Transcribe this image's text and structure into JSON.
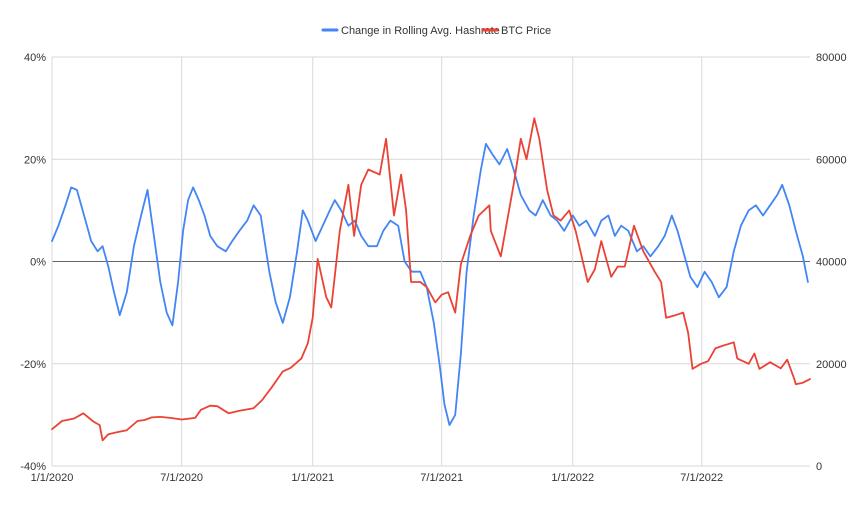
{
  "chart_data": {
    "type": "line",
    "title": "",
    "xlabel": "",
    "ylabel": "",
    "legend": {
      "placement": "top-center"
    },
    "grid": true,
    "x_axis": {
      "range": [
        "2020-01-01",
        "2022-11-30"
      ],
      "ticks": [
        {
          "date": "2020-01-01",
          "label": "1/1/2020"
        },
        {
          "date": "2020-07-01",
          "label": "7/1/2020"
        },
        {
          "date": "2021-01-01",
          "label": "1/1/2021"
        },
        {
          "date": "2021-07-01",
          "label": "7/1/2021"
        },
        {
          "date": "2022-01-01",
          "label": "1/1/2022"
        },
        {
          "date": "2022-07-01",
          "label": "7/1/2022"
        }
      ]
    },
    "y_left": {
      "range": [
        -40,
        40
      ],
      "ticks": [
        {
          "value": 40,
          "label": "40%"
        },
        {
          "value": 20,
          "label": "20%"
        },
        {
          "value": 0,
          "label": "0%"
        },
        {
          "value": -20,
          "label": "-20%"
        },
        {
          "value": -40,
          "label": "-40%"
        }
      ]
    },
    "y_right": {
      "range": [
        0,
        80000
      ],
      "ticks": [
        {
          "value": 80000,
          "label": "80000"
        },
        {
          "value": 60000,
          "label": "60000"
        },
        {
          "value": 40000,
          "label": "40000"
        },
        {
          "value": 20000,
          "label": "20000"
        },
        {
          "value": 0,
          "label": "0"
        }
      ]
    },
    "series": [
      {
        "name": "Change in Rolling Avg. Hashrate",
        "axis": "left",
        "color": "#4285f4",
        "points": [
          [
            "2020-01-01",
            4
          ],
          [
            "2020-01-10",
            7
          ],
          [
            "2020-01-20",
            11
          ],
          [
            "2020-01-28",
            14.5
          ],
          [
            "2020-02-05",
            14
          ],
          [
            "2020-02-15",
            9
          ],
          [
            "2020-02-25",
            4
          ],
          [
            "2020-03-05",
            2
          ],
          [
            "2020-03-12",
            3
          ],
          [
            "2020-03-20",
            -1
          ],
          [
            "2020-03-28",
            -6
          ],
          [
            "2020-04-05",
            -10.5
          ],
          [
            "2020-04-15",
            -6
          ],
          [
            "2020-04-25",
            3
          ],
          [
            "2020-05-05",
            9
          ],
          [
            "2020-05-14",
            14
          ],
          [
            "2020-05-22",
            6
          ],
          [
            "2020-06-01",
            -4
          ],
          [
            "2020-06-10",
            -10
          ],
          [
            "2020-06-18",
            -12.5
          ],
          [
            "2020-06-26",
            -4
          ],
          [
            "2020-07-03",
            6
          ],
          [
            "2020-07-10",
            12
          ],
          [
            "2020-07-17",
            14.5
          ],
          [
            "2020-07-25",
            12
          ],
          [
            "2020-08-02",
            9
          ],
          [
            "2020-08-10",
            5
          ],
          [
            "2020-08-20",
            3
          ],
          [
            "2020-09-01",
            2
          ],
          [
            "2020-09-10",
            4
          ],
          [
            "2020-09-20",
            6
          ],
          [
            "2020-10-01",
            8
          ],
          [
            "2020-10-10",
            11
          ],
          [
            "2020-10-20",
            9
          ],
          [
            "2020-11-01",
            -2
          ],
          [
            "2020-11-10",
            -8
          ],
          [
            "2020-11-20",
            -12
          ],
          [
            "2020-11-30",
            -7
          ],
          [
            "2020-12-10",
            2
          ],
          [
            "2020-12-18",
            10
          ],
          [
            "2020-12-25",
            8
          ],
          [
            "2021-01-05",
            4
          ],
          [
            "2021-01-15",
            7
          ],
          [
            "2021-01-25",
            10
          ],
          [
            "2021-02-01",
            12
          ],
          [
            "2021-02-10",
            10
          ],
          [
            "2021-02-20",
            7
          ],
          [
            "2021-03-01",
            8
          ],
          [
            "2021-03-10",
            5
          ],
          [
            "2021-03-20",
            3
          ],
          [
            "2021-04-01",
            3
          ],
          [
            "2021-04-10",
            6
          ],
          [
            "2021-04-20",
            8
          ],
          [
            "2021-05-01",
            7
          ],
          [
            "2021-05-10",
            0
          ],
          [
            "2021-05-20",
            -2
          ],
          [
            "2021-06-01",
            -2
          ],
          [
            "2021-06-10",
            -5
          ],
          [
            "2021-06-20",
            -12
          ],
          [
            "2021-06-28",
            -20
          ],
          [
            "2021-07-05",
            -28
          ],
          [
            "2021-07-12",
            -32
          ],
          [
            "2021-07-20",
            -30
          ],
          [
            "2021-07-28",
            -18
          ],
          [
            "2021-08-05",
            -2
          ],
          [
            "2021-08-15",
            9
          ],
          [
            "2021-08-25",
            18
          ],
          [
            "2021-09-01",
            23
          ],
          [
            "2021-09-10",
            21
          ],
          [
            "2021-09-20",
            19
          ],
          [
            "2021-10-01",
            22
          ],
          [
            "2021-10-10",
            18
          ],
          [
            "2021-10-20",
            13
          ],
          [
            "2021-11-01",
            10
          ],
          [
            "2021-11-10",
            9
          ],
          [
            "2021-11-20",
            12
          ],
          [
            "2021-12-01",
            9
          ],
          [
            "2021-12-10",
            8
          ],
          [
            "2021-12-20",
            6
          ],
          [
            "2022-01-01",
            9
          ],
          [
            "2022-01-10",
            7
          ],
          [
            "2022-01-20",
            8
          ],
          [
            "2022-02-01",
            5
          ],
          [
            "2022-02-10",
            8
          ],
          [
            "2022-02-20",
            9
          ],
          [
            "2022-03-01",
            5
          ],
          [
            "2022-03-10",
            7
          ],
          [
            "2022-03-20",
            6
          ],
          [
            "2022-04-01",
            2
          ],
          [
            "2022-04-10",
            3
          ],
          [
            "2022-04-20",
            1
          ],
          [
            "2022-05-01",
            3
          ],
          [
            "2022-05-10",
            5
          ],
          [
            "2022-05-20",
            9
          ],
          [
            "2022-05-28",
            6
          ],
          [
            "2022-06-05",
            2
          ],
          [
            "2022-06-15",
            -3
          ],
          [
            "2022-06-25",
            -5
          ],
          [
            "2022-07-05",
            -2
          ],
          [
            "2022-07-15",
            -4
          ],
          [
            "2022-07-25",
            -7
          ],
          [
            "2022-08-05",
            -5
          ],
          [
            "2022-08-15",
            2
          ],
          [
            "2022-08-25",
            7
          ],
          [
            "2022-09-05",
            10
          ],
          [
            "2022-09-15",
            11
          ],
          [
            "2022-09-25",
            9
          ],
          [
            "2022-10-05",
            11
          ],
          [
            "2022-10-15",
            13
          ],
          [
            "2022-10-22",
            15
          ],
          [
            "2022-11-01",
            11
          ],
          [
            "2022-11-10",
            6
          ],
          [
            "2022-11-20",
            1
          ],
          [
            "2022-11-27",
            -4
          ]
        ]
      },
      {
        "name": "BTC Price",
        "axis": "right",
        "color": "#ea4335",
        "points": [
          [
            "2020-01-01",
            7200
          ],
          [
            "2020-01-15",
            8800
          ],
          [
            "2020-02-01",
            9300
          ],
          [
            "2020-02-14",
            10300
          ],
          [
            "2020-02-28",
            8700
          ],
          [
            "2020-03-08",
            8000
          ],
          [
            "2020-03-12",
            5000
          ],
          [
            "2020-03-20",
            6200
          ],
          [
            "2020-04-01",
            6600
          ],
          [
            "2020-04-15",
            7000
          ],
          [
            "2020-04-30",
            8800
          ],
          [
            "2020-05-10",
            9000
          ],
          [
            "2020-05-20",
            9500
          ],
          [
            "2020-06-01",
            9600
          ],
          [
            "2020-06-15",
            9400
          ],
          [
            "2020-07-01",
            9100
          ],
          [
            "2020-07-20",
            9400
          ],
          [
            "2020-07-28",
            11000
          ],
          [
            "2020-08-10",
            11800
          ],
          [
            "2020-08-20",
            11700
          ],
          [
            "2020-09-05",
            10300
          ],
          [
            "2020-09-20",
            10800
          ],
          [
            "2020-10-10",
            11300
          ],
          [
            "2020-10-22",
            12900
          ],
          [
            "2020-11-05",
            15500
          ],
          [
            "2020-11-20",
            18500
          ],
          [
            "2020-12-01",
            19200
          ],
          [
            "2020-12-16",
            21000
          ],
          [
            "2020-12-25",
            24000
          ],
          [
            "2021-01-01",
            29000
          ],
          [
            "2021-01-08",
            40500
          ],
          [
            "2021-01-20",
            33000
          ],
          [
            "2021-01-27",
            31000
          ],
          [
            "2021-02-08",
            46000
          ],
          [
            "2021-02-20",
            55000
          ],
          [
            "2021-02-28",
            45000
          ],
          [
            "2021-03-10",
            55000
          ],
          [
            "2021-03-20",
            58000
          ],
          [
            "2021-04-05",
            57000
          ],
          [
            "2021-04-14",
            64000
          ],
          [
            "2021-04-25",
            49000
          ],
          [
            "2021-05-05",
            57000
          ],
          [
            "2021-05-12",
            50000
          ],
          [
            "2021-05-19",
            36000
          ],
          [
            "2021-06-01",
            36000
          ],
          [
            "2021-06-10",
            35000
          ],
          [
            "2021-06-22",
            32000
          ],
          [
            "2021-07-01",
            33500
          ],
          [
            "2021-07-10",
            34000
          ],
          [
            "2021-07-20",
            30000
          ],
          [
            "2021-07-28",
            39500
          ],
          [
            "2021-08-10",
            45000
          ],
          [
            "2021-08-22",
            49000
          ],
          [
            "2021-09-06",
            51000
          ],
          [
            "2021-09-08",
            46000
          ],
          [
            "2021-09-22",
            41000
          ],
          [
            "2021-10-01",
            48000
          ],
          [
            "2021-10-10",
            55000
          ],
          [
            "2021-10-20",
            64000
          ],
          [
            "2021-10-28",
            60000
          ],
          [
            "2021-11-08",
            68000
          ],
          [
            "2021-11-15",
            64000
          ],
          [
            "2021-11-26",
            54000
          ],
          [
            "2021-12-05",
            49000
          ],
          [
            "2021-12-15",
            48000
          ],
          [
            "2021-12-27",
            50000
          ],
          [
            "2022-01-05",
            46000
          ],
          [
            "2022-01-22",
            36000
          ],
          [
            "2022-02-01",
            38500
          ],
          [
            "2022-02-10",
            44000
          ],
          [
            "2022-02-24",
            37000
          ],
          [
            "2022-03-05",
            39000
          ],
          [
            "2022-03-15",
            39000
          ],
          [
            "2022-03-28",
            47000
          ],
          [
            "2022-04-10",
            42000
          ],
          [
            "2022-04-26",
            38000
          ],
          [
            "2022-05-05",
            36000
          ],
          [
            "2022-05-12",
            29000
          ],
          [
            "2022-05-25",
            29500
          ],
          [
            "2022-06-05",
            30000
          ],
          [
            "2022-06-12",
            26000
          ],
          [
            "2022-06-18",
            19000
          ],
          [
            "2022-06-30",
            20000
          ],
          [
            "2022-07-10",
            20500
          ],
          [
            "2022-07-20",
            23000
          ],
          [
            "2022-07-30",
            23500
          ],
          [
            "2022-08-15",
            24200
          ],
          [
            "2022-08-20",
            21000
          ],
          [
            "2022-09-05",
            20000
          ],
          [
            "2022-09-13",
            22000
          ],
          [
            "2022-09-20",
            19000
          ],
          [
            "2022-10-05",
            20300
          ],
          [
            "2022-10-20",
            19100
          ],
          [
            "2022-10-29",
            20800
          ],
          [
            "2022-11-08",
            17000
          ],
          [
            "2022-11-10",
            16000
          ],
          [
            "2022-11-20",
            16300
          ],
          [
            "2022-11-30",
            17000
          ]
        ]
      }
    ]
  }
}
